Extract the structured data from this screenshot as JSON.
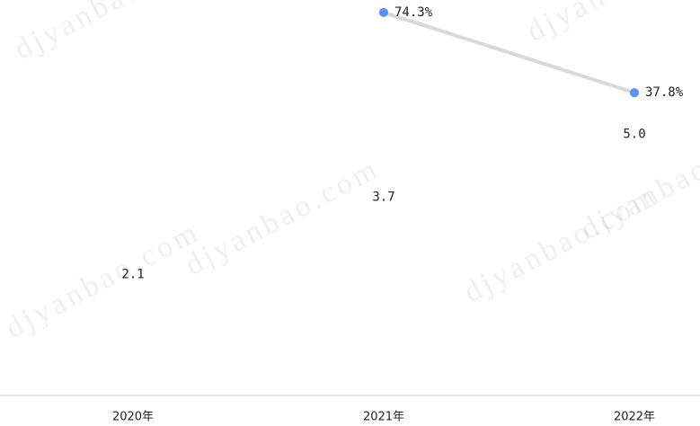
{
  "chart_data": {
    "type": "bar",
    "categories": [
      "2020年",
      "2021年",
      "2022年"
    ],
    "series": [
      {
        "type": "bar",
        "color": "#2b74e6",
        "values": [
          2.1,
          3.7,
          5.0
        ],
        "value_labels": [
          "2.1",
          "3.7",
          "5.0"
        ]
      },
      {
        "type": "line",
        "axis": "y2",
        "color": "#5b8ff9",
        "line_color": "#d9d9d9",
        "values": [
          null,
          74.3,
          37.8
        ],
        "value_labels": [
          null,
          "74.3%",
          "37.8%"
        ]
      }
    ],
    "ylim": [
      0,
      8.2
    ],
    "y2lim": [
      -100,
      80
    ],
    "watermark": "djyanbao.com"
  }
}
